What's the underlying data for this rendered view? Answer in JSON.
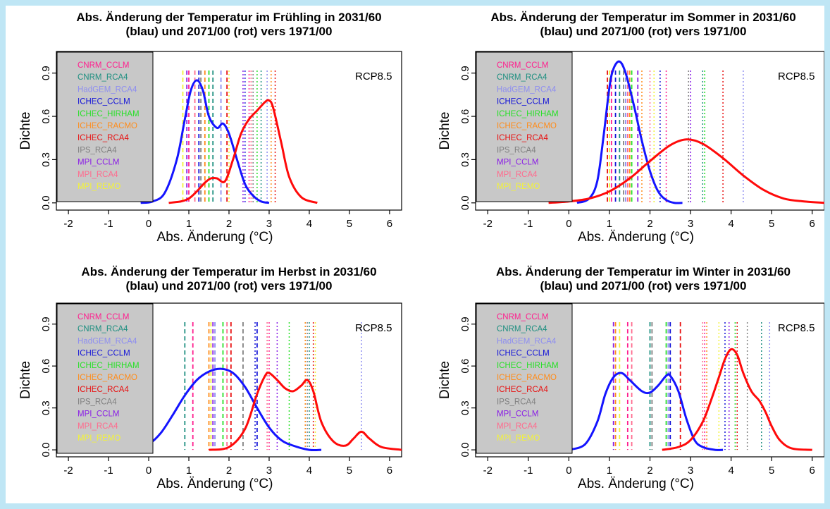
{
  "legend_colors": {
    "CNRM_CCLM": "#ff1f8e",
    "CNRM_RCA4": "#1e8f80",
    "HadGEM_RCA4": "#8e8ef0",
    "ICHEC_CCLM": "#1414d8",
    "ICHEC_HIRHAM": "#28e028",
    "ICHEC_RACMO": "#ff8c1a",
    "ICHEC_RCA4": "#e81010",
    "IPS_RCA4": "#808080",
    "MPI_CCLM": "#8a1ee6",
    "MPI_RCA4": "#ff6b8e",
    "MPI_REMO": "#f2f23a"
  },
  "curve_colors": {
    "blue": "#1414ff",
    "red": "#ff0a0a"
  },
  "legend_bg": "#c8c8c8",
  "chart_data": [
    {
      "type": "line",
      "title": "Abs. Änderung der Temperatur im Frühling in 2031/60\n(blau) und 2071/00 (rot) vers 1971/00",
      "xlabel": "Abs. Änderung (°C)",
      "ylabel": "Dichte",
      "xlim": [
        -2.3,
        6.3
      ],
      "ylim": [
        -0.05,
        1.05
      ],
      "xticks": [
        "-2",
        "-1",
        "0",
        "1",
        "2",
        "3",
        "4",
        "5",
        "6"
      ],
      "yticks": [
        "0.0",
        "0.3",
        "0.6",
        "0.9"
      ],
      "annotation": "RCP8.5",
      "legend": [
        "CNRM_CCLM",
        "CNRM_RCA4",
        "HadGEM_RCA4",
        "ICHEC_CCLM",
        "ICHEC_HIRHAM",
        "ICHEC_RACMO",
        "ICHEC_RCA4",
        "IPS_RCA4",
        "MPI_CCLM",
        "MPI_RCA4",
        "MPI_REMO"
      ],
      "legend_position": "top-left",
      "vlines_dashed": [
        {
          "model": "CNRM_CCLM",
          "x": 1.0
        },
        {
          "model": "CNRM_RCA4",
          "x": 1.6
        },
        {
          "model": "HadGEM_RCA4",
          "x": 1.8
        },
        {
          "model": "ICHEC_CCLM",
          "x": 1.25
        },
        {
          "model": "ICHEC_HIRHAM",
          "x": 1.5
        },
        {
          "model": "ICHEC_RACMO",
          "x": 1.4
        },
        {
          "model": "ICHEC_RCA4",
          "x": 1.95
        },
        {
          "model": "IPS_RCA4",
          "x": 1.3
        },
        {
          "model": "MPI_CCLM",
          "x": 0.95
        },
        {
          "model": "MPI_RCA4",
          "x": 1.15
        },
        {
          "model": "MPI_REMO",
          "x": 0.85
        }
      ],
      "vlines_dotted": [
        {
          "model": "CNRM_CCLM",
          "x": 2.5
        },
        {
          "model": "CNRM_RCA4",
          "x": 2.8
        },
        {
          "model": "HadGEM_RCA4",
          "x": 2.95
        },
        {
          "model": "ICHEC_CCLM",
          "x": 2.4
        },
        {
          "model": "ICHEC_HIRHAM",
          "x": 2.7
        },
        {
          "model": "ICHEC_RACMO",
          "x": 3.05
        },
        {
          "model": "ICHEC_RCA4",
          "x": 3.15
        },
        {
          "model": "IPS_RCA4",
          "x": 2.6
        },
        {
          "model": "MPI_CCLM",
          "x": 2.35
        },
        {
          "model": "MPI_RCA4",
          "x": 2.55
        },
        {
          "model": "MPI_REMO",
          "x": 2.0
        }
      ],
      "series": [
        {
          "color": "blue",
          "x": [
            -0.2,
            0.1,
            0.4,
            0.7,
            0.9,
            1.05,
            1.2,
            1.35,
            1.5,
            1.7,
            1.85,
            2.0,
            2.2,
            2.4,
            2.6,
            2.8,
            3.0
          ],
          "y": [
            0.0,
            0.01,
            0.07,
            0.3,
            0.58,
            0.78,
            0.85,
            0.78,
            0.6,
            0.52,
            0.55,
            0.48,
            0.3,
            0.13,
            0.05,
            0.01,
            0.0
          ]
        },
        {
          "color": "red",
          "x": [
            0.5,
            0.8,
            1.0,
            1.2,
            1.4,
            1.55,
            1.7,
            1.9,
            2.1,
            2.3,
            2.5,
            2.7,
            2.9,
            3.0,
            3.1,
            3.3,
            3.5,
            3.8,
            4.2
          ],
          "y": [
            0.0,
            0.01,
            0.03,
            0.08,
            0.14,
            0.17,
            0.17,
            0.15,
            0.3,
            0.48,
            0.58,
            0.64,
            0.7,
            0.71,
            0.66,
            0.42,
            0.18,
            0.04,
            0.0
          ]
        }
      ]
    },
    {
      "type": "line",
      "title": "Abs. Änderung der Temperatur im Sommer in 2031/60\n(blau) und 2071/00 (rot) vers 1971/00",
      "xlabel": "Abs. Änderung (°C)",
      "ylabel": "Dichte",
      "xlim": [
        -2.3,
        6.3
      ],
      "ylim": [
        -0.05,
        1.05
      ],
      "xticks": [
        "-2",
        "-1",
        "0",
        "1",
        "2",
        "3",
        "4",
        "5",
        "6"
      ],
      "yticks": [
        "0.0",
        "0.3",
        "0.6",
        "0.9"
      ],
      "annotation": "RCP8.5",
      "legend": [
        "CNRM_CCLM",
        "CNRM_RCA4",
        "HadGEM_RCA4",
        "ICHEC_CCLM",
        "ICHEC_HIRHAM",
        "ICHEC_RACMO",
        "ICHEC_RCA4",
        "IPS_RCA4",
        "MPI_CCLM",
        "MPI_RCA4",
        "MPI_REMO"
      ],
      "legend_position": "top-left",
      "vlines_dashed": [
        {
          "model": "CNRM_CCLM",
          "x": 1.05
        },
        {
          "model": "CNRM_RCA4",
          "x": 1.25
        },
        {
          "model": "HadGEM_RCA4",
          "x": 1.4
        },
        {
          "model": "ICHEC_CCLM",
          "x": 1.15
        },
        {
          "model": "ICHEC_HIRHAM",
          "x": 1.55
        },
        {
          "model": "ICHEC_RACMO",
          "x": 1.5
        },
        {
          "model": "ICHEC_RCA4",
          "x": 0.95
        },
        {
          "model": "IPS_RCA4",
          "x": 1.35
        },
        {
          "model": "MPI_CCLM",
          "x": 1.7
        },
        {
          "model": "MPI_RCA4",
          "x": 1.45
        },
        {
          "model": "MPI_REMO",
          "x": 1.0
        }
      ],
      "vlines_dotted": [
        {
          "model": "CNRM_CCLM",
          "x": 2.4
        },
        {
          "model": "CNRM_RCA4",
          "x": 3.3
        },
        {
          "model": "HadGEM_RCA4",
          "x": 4.3
        },
        {
          "model": "ICHEC_CCLM",
          "x": 2.25
        },
        {
          "model": "ICHEC_HIRHAM",
          "x": 3.35
        },
        {
          "model": "ICHEC_RACMO",
          "x": 1.8
        },
        {
          "model": "ICHEC_RCA4",
          "x": 3.8
        },
        {
          "model": "IPS_RCA4",
          "x": 2.95
        },
        {
          "model": "MPI_CCLM",
          "x": 3.0
        },
        {
          "model": "MPI_RCA4",
          "x": 2.0
        },
        {
          "model": "MPI_REMO",
          "x": 2.1
        }
      ],
      "series": [
        {
          "color": "blue",
          "x": [
            0.2,
            0.5,
            0.7,
            0.85,
            1.0,
            1.1,
            1.25,
            1.4,
            1.6,
            1.8,
            2.0,
            2.2,
            2.4,
            2.6,
            2.8
          ],
          "y": [
            0.0,
            0.03,
            0.15,
            0.45,
            0.8,
            0.93,
            0.98,
            0.9,
            0.68,
            0.43,
            0.22,
            0.08,
            0.02,
            0.0,
            0.0
          ]
        },
        {
          "color": "red",
          "x": [
            -0.5,
            0.0,
            0.5,
            1.0,
            1.5,
            2.0,
            2.5,
            2.9,
            3.3,
            3.8,
            4.3,
            4.8,
            5.3,
            5.8,
            6.3
          ],
          "y": [
            0.0,
            0.01,
            0.03,
            0.08,
            0.17,
            0.29,
            0.4,
            0.44,
            0.41,
            0.31,
            0.19,
            0.09,
            0.03,
            0.01,
            0.0
          ]
        }
      ]
    },
    {
      "type": "line",
      "title": "Abs. Änderung der Temperatur im Herbst in 2031/60\n(blau) und 2071/00 (rot) vers 1971/00",
      "xlabel": "Abs. Änderung (°C)",
      "ylabel": "Dichte",
      "xlim": [
        -2.3,
        6.3
      ],
      "ylim": [
        -0.05,
        1.05
      ],
      "xticks": [
        "-2",
        "-1",
        "0",
        "1",
        "2",
        "3",
        "4",
        "5",
        "6"
      ],
      "yticks": [
        "0.0",
        "0.3",
        "0.6",
        "0.9"
      ],
      "annotation": "RCP8.5",
      "legend": [
        "CNRM_CCLM",
        "CNRM_RCA4",
        "HadGEM_RCA4",
        "ICHEC_CCLM",
        "ICHEC_HIRHAM",
        "ICHEC_RACMO",
        "ICHEC_RCA4",
        "IPS_RCA4",
        "MPI_CCLM",
        "MPI_RCA4",
        "MPI_REMO"
      ],
      "legend_position": "top-left",
      "vlines_dashed": [
        {
          "model": "CNRM_CCLM",
          "x": 1.1
        },
        {
          "model": "CNRM_RCA4",
          "x": 0.9
        },
        {
          "model": "HadGEM_RCA4",
          "x": 1.65
        },
        {
          "model": "ICHEC_CCLM",
          "x": 2.7
        },
        {
          "model": "ICHEC_HIRHAM",
          "x": 1.85
        },
        {
          "model": "ICHEC_RACMO",
          "x": 1.5
        },
        {
          "model": "ICHEC_RCA4",
          "x": 2.05
        },
        {
          "model": "IPS_RCA4",
          "x": 2.35
        },
        {
          "model": "MPI_CCLM",
          "x": 1.6
        },
        {
          "model": "MPI_RCA4",
          "x": 1.95
        },
        {
          "model": "MPI_REMO",
          "x": 1.55
        }
      ],
      "vlines_dotted": [
        {
          "model": "CNRM_CCLM",
          "x": 3.0
        },
        {
          "model": "CNRM_RCA4",
          "x": 4.0
        },
        {
          "model": "HadGEM_RCA4",
          "x": 5.3
        },
        {
          "model": "ICHEC_CCLM",
          "x": 2.65
        },
        {
          "model": "ICHEC_HIRHAM",
          "x": 3.5
        },
        {
          "model": "ICHEC_RACMO",
          "x": 3.9
        },
        {
          "model": "ICHEC_RCA4",
          "x": 4.1
        },
        {
          "model": "IPS_RCA4",
          "x": 3.95
        },
        {
          "model": "MPI_CCLM",
          "x": 3.2
        },
        {
          "model": "MPI_RCA4",
          "x": 2.95
        },
        {
          "model": "MPI_REMO",
          "x": 4.15
        }
      ],
      "series": [
        {
          "color": "blue",
          "x": [
            -0.8,
            -0.3,
            0.0,
            0.3,
            0.6,
            0.9,
            1.2,
            1.5,
            1.8,
            2.1,
            2.4,
            2.7,
            3.0,
            3.3,
            3.6,
            4.0,
            4.3
          ],
          "y": [
            0.0,
            0.01,
            0.04,
            0.12,
            0.25,
            0.39,
            0.5,
            0.56,
            0.58,
            0.55,
            0.45,
            0.3,
            0.16,
            0.07,
            0.03,
            0.0,
            0.0
          ]
        },
        {
          "color": "red",
          "x": [
            1.5,
            2.0,
            2.4,
            2.7,
            2.9,
            3.0,
            3.2,
            3.4,
            3.6,
            3.8,
            3.95,
            4.1,
            4.3,
            4.6,
            4.9,
            5.1,
            5.3,
            5.5,
            5.8,
            6.3
          ],
          "y": [
            0.0,
            0.02,
            0.15,
            0.4,
            0.53,
            0.55,
            0.5,
            0.44,
            0.42,
            0.46,
            0.5,
            0.42,
            0.2,
            0.06,
            0.03,
            0.08,
            0.13,
            0.08,
            0.02,
            0.0
          ]
        }
      ]
    },
    {
      "type": "line",
      "title": "Abs. Änderung der Temperatur im Winter in 2031/60\n(blau) und 2071/00 (rot) vers 1971/00",
      "xlabel": "Abs. Änderung (°C)",
      "ylabel": "Dichte",
      "xlim": [
        -2.3,
        6.3
      ],
      "ylim": [
        -0.05,
        1.05
      ],
      "xticks": [
        "-2",
        "-1",
        "0",
        "1",
        "2",
        "3",
        "4",
        "5",
        "6"
      ],
      "yticks": [
        "0.0",
        "0.3",
        "0.6",
        "0.9"
      ],
      "annotation": "RCP8.5",
      "legend": [
        "CNRM_CCLM",
        "CNRM_RCA4",
        "HadGEM_RCA4",
        "ICHEC_CCLM",
        "ICHEC_HIRHAM",
        "ICHEC_RACMO",
        "ICHEC_RCA4",
        "IPS_RCA4",
        "MPI_CCLM",
        "MPI_RCA4",
        "MPI_REMO"
      ],
      "legend_position": "top-left",
      "vlines_dashed": [
        {
          "model": "CNRM_CCLM",
          "x": 1.45
        },
        {
          "model": "CNRM_RCA4",
          "x": 2.0
        },
        {
          "model": "HadGEM_RCA4",
          "x": 2.45
        },
        {
          "model": "ICHEC_CCLM",
          "x": 2.5
        },
        {
          "model": "ICHEC_HIRHAM",
          "x": 2.4
        },
        {
          "model": "ICHEC_RACMO",
          "x": 1.15
        },
        {
          "model": "ICHEC_RCA4",
          "x": 2.75
        },
        {
          "model": "IPS_RCA4",
          "x": 2.05
        },
        {
          "model": "MPI_CCLM",
          "x": 1.1
        },
        {
          "model": "MPI_RCA4",
          "x": 1.55
        },
        {
          "model": "MPI_REMO",
          "x": 1.25
        }
      ],
      "vlines_dotted": [
        {
          "model": "CNRM_CCLM",
          "x": 3.35
        },
        {
          "model": "CNRM_RCA4",
          "x": 4.75
        },
        {
          "model": "HadGEM_RCA4",
          "x": 4.95
        },
        {
          "model": "ICHEC_CCLM",
          "x": 3.85
        },
        {
          "model": "ICHEC_HIRHAM",
          "x": 4.1
        },
        {
          "model": "ICHEC_RACMO",
          "x": 3.4
        },
        {
          "model": "ICHEC_RCA4",
          "x": 4.15
        },
        {
          "model": "IPS_RCA4",
          "x": 4.4
        },
        {
          "model": "MPI_CCLM",
          "x": 3.95
        },
        {
          "model": "MPI_RCA4",
          "x": 3.3
        },
        {
          "model": "MPI_REMO",
          "x": 3.7
        }
      ],
      "series": [
        {
          "color": "blue",
          "x": [
            0.0,
            0.4,
            0.7,
            0.9,
            1.1,
            1.3,
            1.5,
            1.8,
            2.0,
            2.2,
            2.4,
            2.5,
            2.7,
            2.9,
            3.1,
            3.3,
            3.6,
            3.8
          ],
          "y": [
            0.0,
            0.04,
            0.2,
            0.4,
            0.52,
            0.55,
            0.5,
            0.42,
            0.41,
            0.46,
            0.53,
            0.53,
            0.42,
            0.22,
            0.07,
            0.02,
            0.0,
            0.0
          ]
        },
        {
          "color": "red",
          "x": [
            2.3,
            2.7,
            3.0,
            3.3,
            3.5,
            3.7,
            3.85,
            4.0,
            4.15,
            4.3,
            4.5,
            4.7,
            4.85,
            5.0,
            5.2,
            5.5,
            6.0
          ],
          "y": [
            0.0,
            0.02,
            0.07,
            0.2,
            0.35,
            0.52,
            0.65,
            0.72,
            0.68,
            0.55,
            0.42,
            0.35,
            0.27,
            0.17,
            0.07,
            0.01,
            0.0
          ]
        }
      ]
    }
  ]
}
